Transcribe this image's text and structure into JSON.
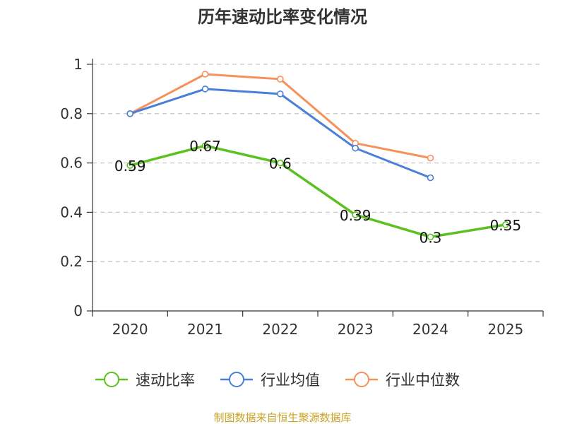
{
  "chart_data": {
    "type": "line",
    "title": "历年速动比率变化情况",
    "categories": [
      "2020",
      "2021",
      "2022",
      "2023",
      "2024",
      "2025"
    ],
    "ylim": [
      0,
      1
    ],
    "yticks": [
      "0",
      "0.2",
      "0.4",
      "0.6",
      "0.8",
      "1"
    ],
    "ytick_values": [
      0,
      0.2,
      0.4,
      0.6,
      0.8,
      1
    ],
    "grid": true,
    "legend_position": "bottom",
    "series": [
      {
        "name": "速动比率",
        "color": "#5cc021",
        "values": [
          0.59,
          0.67,
          0.6,
          0.39,
          0.3,
          0.35
        ],
        "labels": [
          "0.59",
          "0.67",
          "0.6",
          "0.39",
          "0.3",
          "0.35"
        ]
      },
      {
        "name": "行业均值",
        "color": "#4a7fd8",
        "values": [
          0.8,
          0.9,
          0.88,
          0.66,
          0.54,
          null
        ]
      },
      {
        "name": "行业中位数",
        "color": "#f5915a",
        "values": [
          0.8,
          0.96,
          0.94,
          0.68,
          0.62,
          null
        ]
      }
    ],
    "source": "制图数据来自恒生聚源数据库"
  }
}
